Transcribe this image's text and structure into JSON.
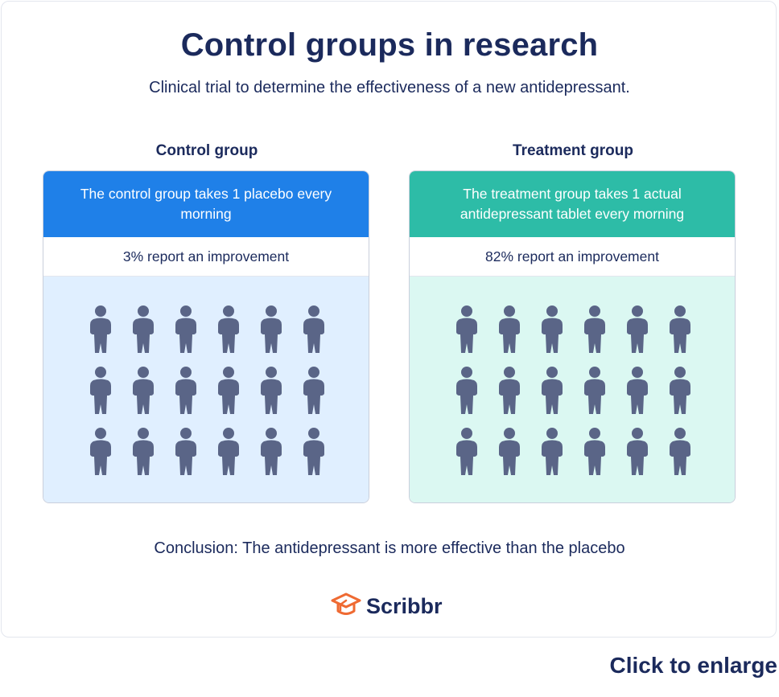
{
  "title": "Control groups in research",
  "subtitle": "Clinical trial to determine the effectiveness of a new antidepressant.",
  "groups": [
    {
      "label": "Control group",
      "description": "The control group takes 1 placebo every morning",
      "result": "3% report an improvement",
      "header_color": "#1f80e8",
      "body_color": "#e0efff",
      "people_count": 18
    },
    {
      "label": "Treatment group",
      "description": "The treatment group takes 1 actual antidepressant tablet every morning",
      "result": "82% report an improvement",
      "header_color": "#2dbca7",
      "body_color": "#dbf8f2",
      "people_count": 18
    }
  ],
  "person_icon_color": "#5a6587",
  "conclusion": "Conclusion: The antidepressant is more effective than the placebo",
  "logo": {
    "text": "Scribbr",
    "icon": "graduation-cap-icon",
    "icon_color": "#ef6a32"
  },
  "enlarge_link": "Click to enlarge"
}
